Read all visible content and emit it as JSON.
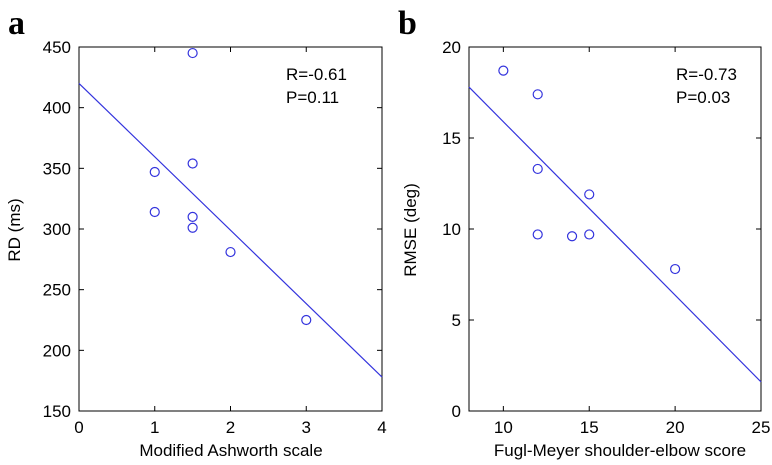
{
  "chart_data": [
    {
      "type": "scatter",
      "panel": "a",
      "xlabel": "Modified Ashworth scale",
      "ylabel": "RD (ms)",
      "xlim": [
        0,
        4
      ],
      "ylim": [
        150,
        450
      ],
      "xticks": [
        0,
        1,
        2,
        3,
        4
      ],
      "yticks": [
        150,
        200,
        250,
        300,
        350,
        400,
        450
      ],
      "stats": [
        "R=-0.61",
        "P=0.11"
      ],
      "points": [
        {
          "x": 1.5,
          "y": 445
        },
        {
          "x": 1.5,
          "y": 354
        },
        {
          "x": 1.0,
          "y": 347
        },
        {
          "x": 1.0,
          "y": 314
        },
        {
          "x": 1.5,
          "y": 310
        },
        {
          "x": 1.5,
          "y": 301
        },
        {
          "x": 2.0,
          "y": 281
        },
        {
          "x": 3.0,
          "y": 225
        }
      ],
      "fit_line": {
        "x": [
          0,
          4
        ],
        "y": [
          420,
          178
        ]
      },
      "color": "#3333dd",
      "grid": false
    },
    {
      "type": "scatter",
      "panel": "b",
      "xlabel": "Fugl-Meyer shoulder-elbow score",
      "ylabel": "RMSE (deg)",
      "xlim": [
        8,
        25
      ],
      "ylim": [
        0,
        20
      ],
      "xticks": [
        10,
        15,
        20,
        25
      ],
      "yticks": [
        0,
        5,
        10,
        15,
        20
      ],
      "stats": [
        "R=-0.73",
        "P=0.03"
      ],
      "points": [
        {
          "x": 10,
          "y": 18.7
        },
        {
          "x": 12,
          "y": 17.4
        },
        {
          "x": 12,
          "y": 13.3
        },
        {
          "x": 15,
          "y": 11.9
        },
        {
          "x": 12,
          "y": 9.7
        },
        {
          "x": 14,
          "y": 9.6
        },
        {
          "x": 15,
          "y": 9.7
        },
        {
          "x": 20,
          "y": 7.8
        }
      ],
      "fit_line": {
        "x": [
          8,
          25
        ],
        "y": [
          17.8,
          1.6
        ]
      },
      "color": "#3333dd",
      "grid": false
    }
  ]
}
